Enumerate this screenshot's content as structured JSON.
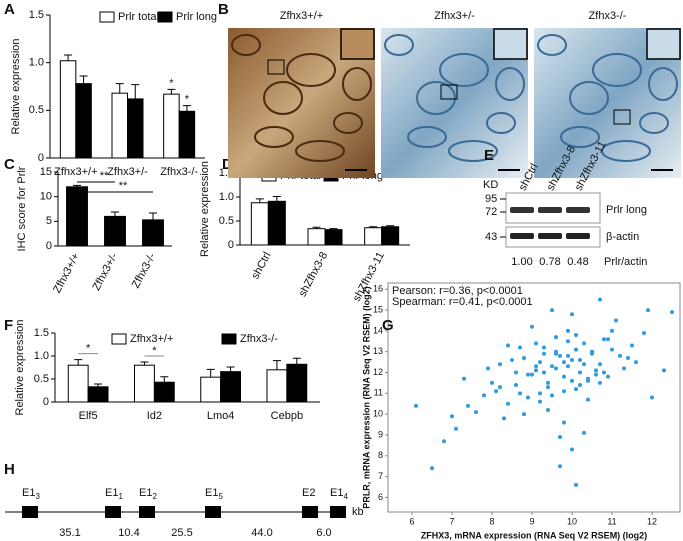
{
  "chart_data": [
    {
      "type": "bar",
      "panel": "A",
      "ylabel": "Relative expression",
      "legend": true,
      "categories": [
        "Zfhx3+/+",
        "Zfhx3+/-",
        "Zfhx3-/-"
      ],
      "series": [
        {
          "name": "Prlr total",
          "color": "#ffffff",
          "values": [
            1.02,
            0.68,
            0.67
          ],
          "errors": [
            0.06,
            0.1,
            0.05
          ]
        },
        {
          "name": "Prlr long",
          "color": "#000000",
          "values": [
            0.78,
            0.62,
            0.49
          ],
          "errors": [
            0.08,
            0.15,
            0.06
          ]
        }
      ],
      "ylim": [
        0,
        1.5
      ],
      "yticks": [
        0,
        0.5,
        {
          "value": 1,
          "label": "1.0"
        },
        {
          "value": 1.5,
          "label": "1.5"
        }
      ],
      "annotations": [
        "*",
        "*"
      ]
    },
    {
      "type": "bar",
      "panel": "C",
      "ylabel": "IHC score for Prlr",
      "legend": false,
      "categories": [
        "Zfhx3+/+",
        "Zfhx3+/-",
        "Zfhx3-/-"
      ],
      "series": [
        {
          "color": "#000000",
          "values": [
            12,
            6,
            5.3
          ],
          "errors": [
            0.3,
            0.9,
            1.4
          ]
        }
      ],
      "ylim": [
        0,
        15
      ],
      "yticks": [
        0,
        5,
        10,
        15
      ],
      "annotations": [
        "**",
        "**"
      ]
    },
    {
      "type": "bar",
      "panel": "D",
      "ylabel": "Relative expression",
      "legend": true,
      "categories": [
        "shCtrl",
        "shZfhx3-8",
        "shZfhx3-11"
      ],
      "series": [
        {
          "name": "Prlr total",
          "color": "#ffffff",
          "values": [
            0.88,
            0.34,
            0.36
          ],
          "errors": [
            0.08,
            0.03,
            0.02
          ]
        },
        {
          "name": "Prlr long",
          "color": "#000000",
          "values": [
            0.91,
            0.32,
            0.38
          ],
          "errors": [
            0.1,
            0.02,
            0.02
          ]
        }
      ],
      "ylim": [
        0,
        1.5
      ],
      "yticks": [
        0,
        0.5,
        {
          "value": 1,
          "label": "1.0"
        },
        {
          "value": 1.5,
          "label": "1.5"
        }
      ]
    },
    {
      "type": "bar",
      "panel": "F",
      "ylabel": "Relative expression",
      "legend": true,
      "categories": [
        "Elf5",
        "Id2",
        "Lmo4",
        "Cebpb"
      ],
      "series": [
        {
          "name": "Zfhx3+/+",
          "color": "#ffffff",
          "values": [
            0.8,
            0.8,
            0.54,
            0.7
          ],
          "errors": [
            0.12,
            0.07,
            0.17,
            0.2
          ]
        },
        {
          "name": "Zfhx3-/-",
          "color": "#000000",
          "values": [
            0.33,
            0.43,
            0.66,
            0.82
          ],
          "errors": [
            0.06,
            0.12,
            0.1,
            0.13
          ]
        }
      ],
      "ylim": [
        0,
        1.5
      ],
      "yticks": [
        0,
        0.5,
        {
          "value": 1,
          "label": "1.0"
        },
        {
          "value": 1.5,
          "label": "1.5"
        }
      ],
      "annotations": [
        "*",
        "*"
      ]
    },
    {
      "type": "scatter",
      "panel": "G",
      "color": "#2f9be0",
      "xlabel": "ZFHX3, mRNA expression (RNA Seq V2 RSEM) (log2)",
      "ylabel": "PRLR, mRNA expression (RNA Seq V2 RSEM) (log2)",
      "annotations": [
        "Pearson: r=0.36, p<0.0001",
        "Spearman: r=0.41, p<0.0001"
      ],
      "xlim": [
        5.4,
        12.7
      ],
      "ylim": [
        5.3,
        16.3
      ],
      "xticks": [
        6,
        7,
        8,
        9,
        10,
        11,
        12
      ],
      "yticks": [
        6,
        7,
        8,
        9,
        10,
        11,
        12,
        13,
        14,
        15,
        16
      ],
      "x": [
        9.1,
        9.8,
        10.2,
        8.7,
        10.5,
        9.4,
        11.0,
        9.9,
        10.1,
        8.9,
        9.6,
        10.7,
        9.3,
        10.0,
        8.4,
        9.7,
        10.3,
        11.3,
        9.0,
        9.5,
        10.8,
        8.2,
        9.2,
        10.4,
        9.9,
        10.6,
        8.8,
        9.4,
        10.9,
        11.5,
        7.8,
        9.6,
        10.1,
        8.6,
        9.8,
        10.2,
        11.1,
        9.3,
        8.1,
        10.0,
        9.7,
        10.5,
        7.4,
        9.1,
        11.8,
        8.9,
        10.3,
        9.5,
        10.7,
        6.1,
        9.9,
        8.5,
        10.4,
        9.2,
        11.2,
        10.0,
        7.9,
        9.6,
        10.8,
        8.3,
        12.3,
        9.4,
        10.1,
        7.1,
        9.8,
        10.6,
        8.7,
        9.0,
        11.4,
        6.8,
        10.2,
        9.3,
        8.0,
        10.9,
        9.7,
        7.6,
        11.0,
        9.5,
        10.3,
        8.4,
        12.0,
        9.9,
        6.5,
        10.4,
        8.8,
        11.6,
        9.1,
        10.7,
        7.3,
        9.6,
        10.0,
        8.6,
        11.9,
        9.2,
        10.5,
        7.0,
        9.8,
        12.5,
        8.2,
        10.1
      ],
      "values": [
        12.1,
        11.8,
        12.6,
        11.0,
        12.9,
        11.5,
        13.1,
        12.3,
        11.2,
        10.8,
        13.0,
        12.4,
        12.0,
        11.6,
        10.5,
        12.8,
        13.4,
        12.2,
        11.9,
        10.9,
        13.6,
        11.3,
        12.5,
        11.7,
        14.0,
        12.1,
        12.7,
        10.2,
        11.8,
        13.3,
        10.9,
        12.9,
        13.8,
        11.4,
        9.6,
        12.0,
        14.5,
        13.2,
        11.1,
        12.6,
        8.9,
        13.0,
        10.4,
        12.3,
        13.9,
        11.9,
        12.4,
        15.0,
        11.5,
        10.4,
        13.5,
        12.6,
        10.7,
        11.0,
        12.8,
        14.8,
        12.2,
        13.7,
        12.0,
        9.8,
        12.1,
        11.3,
        13.1,
        9.3,
        12.5,
        11.9,
        13.2,
        14.2,
        12.7,
        8.7,
        11.4,
        12.9,
        11.5,
        13.6,
        7.5,
        10.1,
        14.0,
        12.3,
        9.1,
        13.3,
        10.8,
        12.8,
        7.4,
        11.6,
        10.0,
        12.5,
        13.4,
        15.5,
        11.7,
        12.2,
        8.3,
        12.0,
        15.0,
        10.6,
        13.0,
        9.9,
        11.1,
        14.9,
        12.4,
        6.6
      ]
    }
  ],
  "panel_b": {
    "panel": "B",
    "images": [
      "Zfhx3+/+",
      "Zfhx3+/-",
      "Zfhx3-/-"
    ]
  },
  "panel_e": {
    "panel": "E",
    "unit": "KD",
    "lanes": [
      "shCtrl",
      "shZfhx3-8",
      "shZfhx3-11"
    ],
    "markers": [
      95,
      72,
      43
    ],
    "bands": [
      "Prlr long",
      "β-actin"
    ],
    "ratios": [
      "1.00",
      "0.78",
      "0.48"
    ],
    "ratio_label": "Prlr/actin"
  },
  "panel_h": {
    "panel": "H",
    "exons": [
      {
        "name": "E1",
        "sub": "3"
      },
      {
        "name": "E1",
        "sub": "1"
      },
      {
        "name": "E1",
        "sub": "2"
      },
      {
        "name": "E1",
        "sub": "5"
      },
      {
        "name": "E2"
      },
      {
        "name": "E1",
        "sub": "4"
      }
    ],
    "distances": [
      "35.1",
      "10.4",
      "25.5",
      "44.0",
      "6.0"
    ],
    "unit": "kb"
  }
}
